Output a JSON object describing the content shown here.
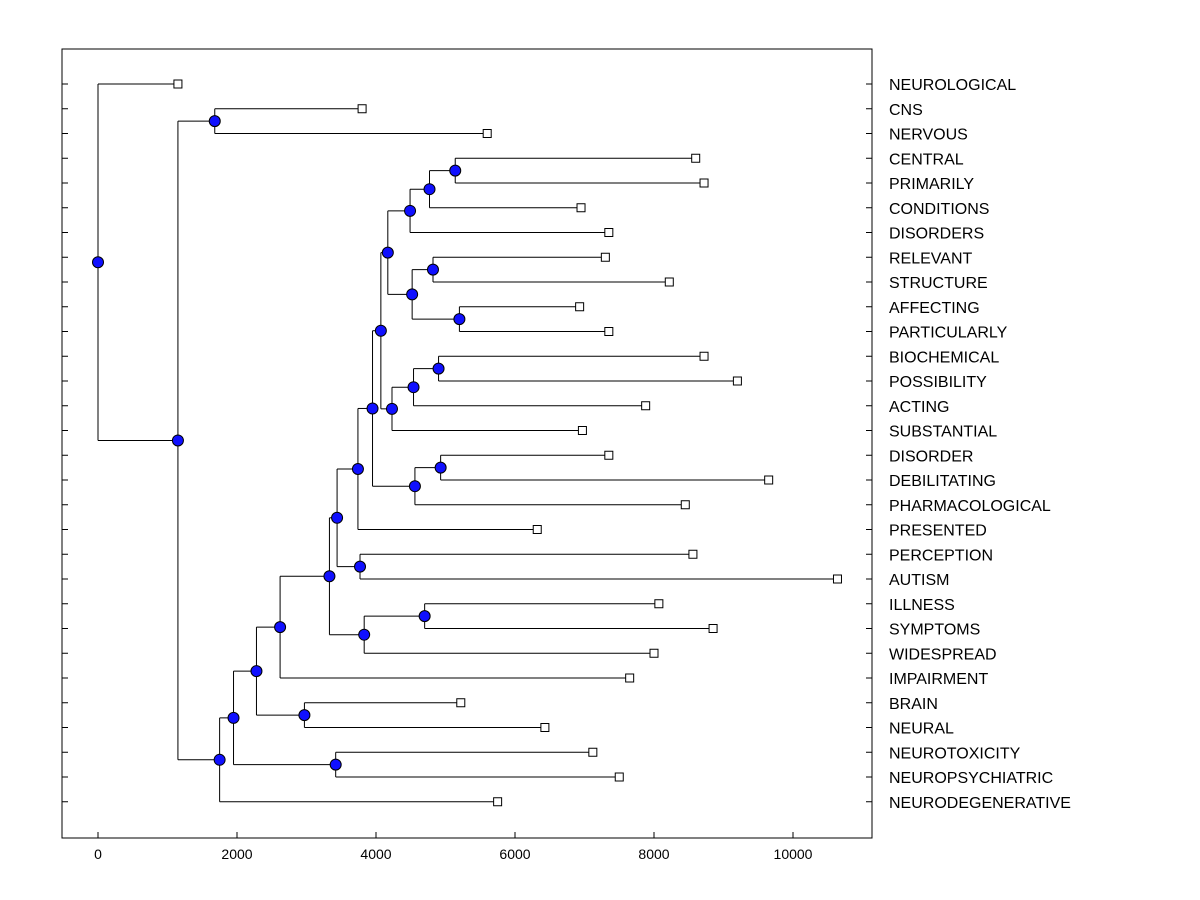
{
  "chart_data": {
    "type": "dendrogram",
    "title": "",
    "xlabel": "",
    "ylabel": "",
    "xlim": [
      -500,
      11200
    ],
    "xticks": [
      0,
      2000,
      4000,
      6000,
      8000,
      10000
    ],
    "xtick_labels": [
      "0",
      "2000",
      "4000",
      "6000",
      "8000",
      "10000"
    ],
    "colors": {
      "node": "#1010ff",
      "line": "#000000",
      "leaf_marker": "#ffffff"
    },
    "leaves": [
      {
        "label": "NEUROLOGICAL",
        "value": 1150
      },
      {
        "label": "CNS",
        "value": 3800
      },
      {
        "label": "NERVOUS",
        "value": 5600
      },
      {
        "label": "CENTRAL",
        "value": 8600
      },
      {
        "label": "PRIMARILY",
        "value": 8720
      },
      {
        "label": "CONDITIONS",
        "value": 6950
      },
      {
        "label": "DISORDERS",
        "value": 7350
      },
      {
        "label": "RELEVANT",
        "value": 7300
      },
      {
        "label": "STRUCTURE",
        "value": 8220
      },
      {
        "label": "AFFECTING",
        "value": 6930
      },
      {
        "label": "PARTICULARLY",
        "value": 7350
      },
      {
        "label": "BIOCHEMICAL",
        "value": 8720
      },
      {
        "label": "POSSIBILITY",
        "value": 9200
      },
      {
        "label": "ACTING",
        "value": 7880
      },
      {
        "label": "SUBSTANTIAL",
        "value": 6970
      },
      {
        "label": "DISORDER",
        "value": 7350
      },
      {
        "label": "DEBILITATING",
        "value": 9650
      },
      {
        "label": "PHARMACOLOGICAL",
        "value": 8450
      },
      {
        "label": "PRESENTED",
        "value": 6320
      },
      {
        "label": "PERCEPTION",
        "value": 8560
      },
      {
        "label": "AUTISM",
        "value": 10640
      },
      {
        "label": "ILLNESS",
        "value": 8070
      },
      {
        "label": "SYMPTOMS",
        "value": 8850
      },
      {
        "label": "WIDESPREAD",
        "value": 8000
      },
      {
        "label": "IMPAIRMENT",
        "value": 7650
      },
      {
        "label": "BRAIN",
        "value": 5220
      },
      {
        "label": "NEURAL",
        "value": 6430
      },
      {
        "label": "NEUROTOXICITY",
        "value": 7120
      },
      {
        "label": "NEUROPSYCHIATRIC",
        "value": 7500
      },
      {
        "label": "NEURODEGENERATIVE",
        "value": 5750
      }
    ],
    "nodes": [
      {
        "id": "root",
        "value": 0,
        "children": [
          "L0",
          "n_main"
        ]
      },
      {
        "id": "n_main",
        "value": 1150,
        "children": [
          "n_cns",
          "n_big"
        ]
      },
      {
        "id": "n_cns",
        "value": 1680,
        "children": [
          "L1",
          "L2"
        ]
      },
      {
        "id": "n_big",
        "value": 1750,
        "children": [
          "n_g",
          "L29"
        ]
      },
      {
        "id": "n_g",
        "value": 1950,
        "children": [
          "n_h",
          "n_neuro"
        ]
      },
      {
        "id": "n_neuro",
        "value": 3420,
        "children": [
          "L27",
          "L28"
        ]
      },
      {
        "id": "n_h",
        "value": 2280,
        "children": [
          "n_i",
          "n_brain"
        ]
      },
      {
        "id": "n_brain",
        "value": 2970,
        "children": [
          "L25",
          "L26"
        ]
      },
      {
        "id": "n_i",
        "value": 2620,
        "children": [
          "n_j",
          "L24"
        ]
      },
      {
        "id": "n_j",
        "value": 3330,
        "children": [
          "n_k",
          "n_sym"
        ]
      },
      {
        "id": "n_sym",
        "value": 3830,
        "children": [
          "n_ill",
          "L23"
        ]
      },
      {
        "id": "n_ill",
        "value": 4700,
        "children": [
          "L21",
          "L22"
        ]
      },
      {
        "id": "n_k",
        "value": 3440,
        "children": [
          "n_l",
          "n_perc"
        ]
      },
      {
        "id": "n_perc",
        "value": 3770,
        "children": [
          "L19",
          "L20"
        ]
      },
      {
        "id": "n_l",
        "value": 3740,
        "children": [
          "n_m",
          "L18"
        ]
      },
      {
        "id": "n_m",
        "value": 3950,
        "children": [
          "n_a",
          "n_dis"
        ]
      },
      {
        "id": "n_dis",
        "value": 4560,
        "children": [
          "n_disdeb",
          "L17"
        ]
      },
      {
        "id": "n_disdeb",
        "value": 4930,
        "children": [
          "L15",
          "L16"
        ]
      },
      {
        "id": "n_a",
        "value": 4070,
        "children": [
          "n_b",
          "n_c"
        ]
      },
      {
        "id": "n_c",
        "value": 4230,
        "children": [
          "n_d",
          "L14"
        ]
      },
      {
        "id": "n_d",
        "value": 4540,
        "children": [
          "n_bio",
          "L13"
        ]
      },
      {
        "id": "n_bio",
        "value": 4900,
        "children": [
          "L11",
          "L12"
        ]
      },
      {
        "id": "n_b",
        "value": 4170,
        "children": [
          "n_e",
          "n_f"
        ]
      },
      {
        "id": "n_f",
        "value": 4520,
        "children": [
          "n_rel",
          "n_aff"
        ]
      },
      {
        "id": "n_aff",
        "value": 5200,
        "children": [
          "L9",
          "L10"
        ]
      },
      {
        "id": "n_rel",
        "value": 4820,
        "children": [
          "L7",
          "L8"
        ]
      },
      {
        "id": "n_e",
        "value": 4490,
        "children": [
          "n_e2",
          "L6"
        ]
      },
      {
        "id": "n_e2",
        "value": 4770,
        "children": [
          "n_cen",
          "L5"
        ]
      },
      {
        "id": "n_cen",
        "value": 5140,
        "children": [
          "L3",
          "L4"
        ]
      }
    ]
  }
}
